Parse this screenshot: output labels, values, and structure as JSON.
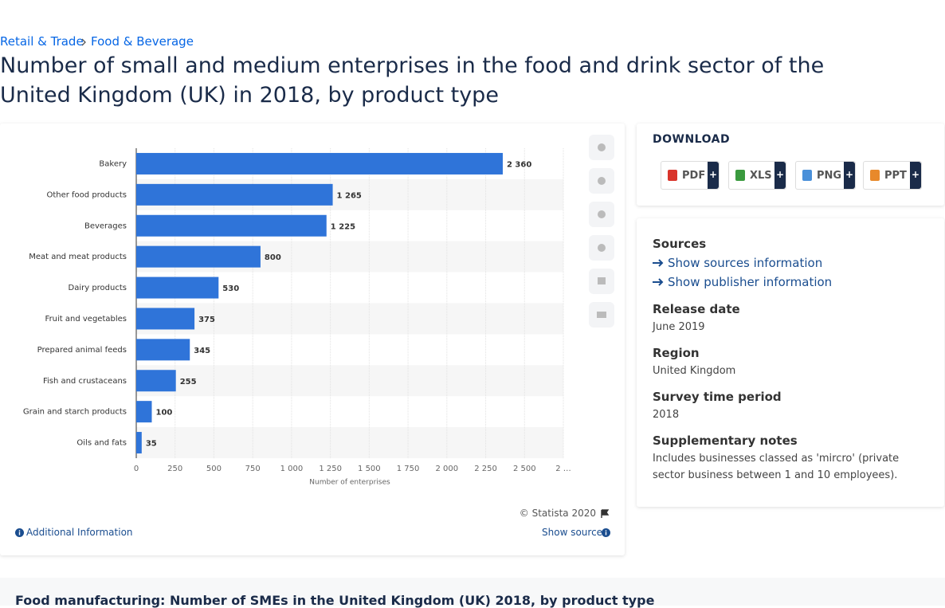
{
  "breadcrumbs": [
    "Retail & Trade",
    "Food & Beverage"
  ],
  "title": "Number of small and medium enterprises in the food and drink sector of the United Kingdom (UK) in 2018, by product type",
  "chart_data": {
    "type": "bar",
    "orientation": "horizontal",
    "categories": [
      "Bakery",
      "Other food products",
      "Beverages",
      "Meat and meat products",
      "Dairy products",
      "Fruit and vegetables",
      "Prepared animal feeds",
      "Fish and crustaceans",
      "Grain and starch products",
      "Oils and fats"
    ],
    "values": [
      2360,
      1265,
      1225,
      800,
      530,
      375,
      345,
      255,
      100,
      35
    ],
    "value_labels": [
      "2 360",
      "1 265",
      "1 225",
      "800",
      "530",
      "375",
      "345",
      "255",
      "100",
      "35"
    ],
    "color": "#2f74d9",
    "xlabel": "Number of enterprises",
    "xlim": [
      0,
      2750
    ],
    "xticks": [
      0,
      250,
      500,
      750,
      {
        "value": 1000,
        "label": "1 000"
      },
      {
        "value": 1250,
        "label": "1 250"
      },
      {
        "value": 1500,
        "label": "1 500"
      },
      {
        "value": 1750,
        "label": "1 750"
      },
      {
        "value": 2000,
        "label": "2 000"
      },
      {
        "value": 2250,
        "label": "2 250"
      },
      {
        "value": 2500,
        "label": "2 500"
      },
      {
        "value": 2750,
        "label": "2 …"
      }
    ],
    "grid": true
  },
  "chart_footer": {
    "copyright": "© Statista 2020",
    "additional": "Additional Information",
    "source": "Show source"
  },
  "download": {
    "heading": "DOWNLOAD",
    "formats": [
      "PDF",
      "XLS",
      "PNG",
      "PPT"
    ],
    "plus": "+"
  },
  "details": {
    "sources_heading": "Sources",
    "links": [
      "Show sources information",
      "Show publisher information"
    ],
    "items": [
      {
        "label": "Release date",
        "value": "June 2019"
      },
      {
        "label": "Region",
        "value": "United Kingdom"
      },
      {
        "label": "Survey time period",
        "value": "2018"
      },
      {
        "label": "Supplementary notes",
        "value": "Includes businesses classed as 'mircro' (private sector business between 1 and 10 employees)."
      }
    ]
  },
  "related_title": "Food manufacturing: Number of SMEs in the United Kingdom (UK) 2018, by product type"
}
